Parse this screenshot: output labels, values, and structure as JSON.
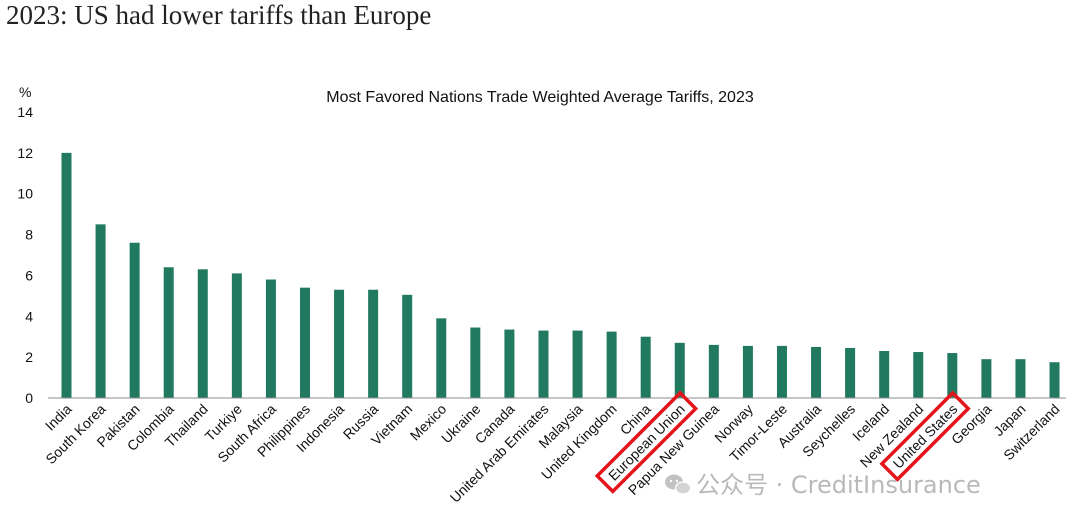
{
  "page": {
    "headline": "2023: US had lower tariffs than Europe",
    "watermark": "公众号 · CreditInsurance"
  },
  "colors": {
    "bar": "#217a5f",
    "highlight_box": "#e4141b",
    "axis": "#8c8c8c"
  },
  "chart_data": {
    "type": "bar",
    "title": "Most Favored Nations Trade Weighted Average Tariffs, 2023",
    "ylabel": "%",
    "xlabel": "",
    "ylim": [
      0,
      14
    ],
    "yticks": [
      0,
      2,
      4,
      6,
      8,
      10,
      12,
      14
    ],
    "grid": false,
    "categories": [
      "India",
      "South Korea",
      "Pakistan",
      "Colombia",
      "Thailand",
      "Turkiye",
      "South Africa",
      "Philippines",
      "Indonesia",
      "Russia",
      "Vietnam",
      "Mexico",
      "Ukraine",
      "Canada",
      "United Arab Emirates",
      "Malaysia",
      "United Kingdom",
      "China",
      "European Union",
      "Papua New Guinea",
      "Norway",
      "Timor-Leste",
      "Australia",
      "Seychelles",
      "Iceland",
      "New Zealand",
      "United States",
      "Georgia",
      "Japan",
      "Switzerland"
    ],
    "values": [
      12.0,
      8.5,
      7.6,
      6.4,
      6.3,
      6.1,
      5.8,
      5.4,
      5.3,
      5.3,
      5.05,
      3.9,
      3.45,
      3.35,
      3.3,
      3.3,
      3.25,
      3.0,
      2.7,
      2.6,
      2.55,
      2.55,
      2.5,
      2.45,
      2.3,
      2.25,
      2.2,
      1.9,
      1.9,
      1.75
    ],
    "highlighted": [
      "European Union",
      "United States"
    ]
  }
}
